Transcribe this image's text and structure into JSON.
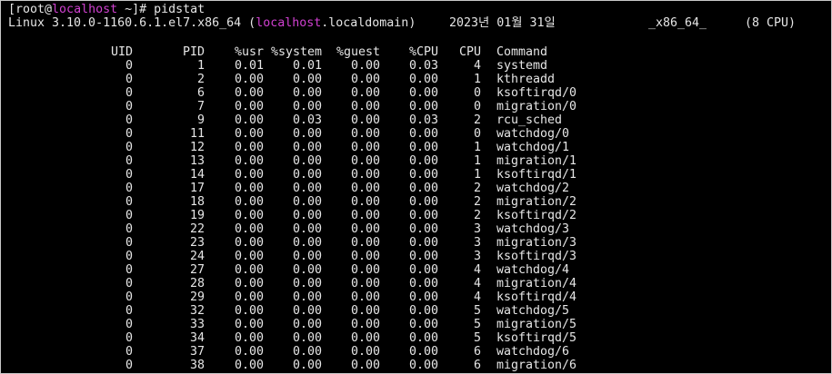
{
  "prompt": {
    "user": "[root@",
    "host": "localhost",
    "rest": " ~]# pidstat"
  },
  "system_info": {
    "kernel": "Linux 3.10.0-1160.6.1.el7.x86_64 (",
    "host": "localhost",
    "domain": ".localdomain)",
    "date": "2023년 01월 31일",
    "arch": "_x86_64_",
    "cpus": "(8 CPU)"
  },
  "table": {
    "columns": [
      "UID",
      "PID",
      "%usr",
      "%system",
      "%guest",
      "%CPU",
      "CPU",
      "Command"
    ],
    "rows": [
      [
        "0",
        "1",
        "0.01",
        "0.01",
        "0.00",
        "0.03",
        "4",
        "systemd"
      ],
      [
        "0",
        "2",
        "0.00",
        "0.00",
        "0.00",
        "0.00",
        "1",
        "kthreadd"
      ],
      [
        "0",
        "6",
        "0.00",
        "0.00",
        "0.00",
        "0.00",
        "0",
        "ksoftirqd/0"
      ],
      [
        "0",
        "7",
        "0.00",
        "0.00",
        "0.00",
        "0.00",
        "0",
        "migration/0"
      ],
      [
        "0",
        "9",
        "0.00",
        "0.03",
        "0.00",
        "0.03",
        "2",
        "rcu_sched"
      ],
      [
        "0",
        "11",
        "0.00",
        "0.00",
        "0.00",
        "0.00",
        "0",
        "watchdog/0"
      ],
      [
        "0",
        "12",
        "0.00",
        "0.00",
        "0.00",
        "0.00",
        "1",
        "watchdog/1"
      ],
      [
        "0",
        "13",
        "0.00",
        "0.00",
        "0.00",
        "0.00",
        "1",
        "migration/1"
      ],
      [
        "0",
        "14",
        "0.00",
        "0.00",
        "0.00",
        "0.00",
        "1",
        "ksoftirqd/1"
      ],
      [
        "0",
        "17",
        "0.00",
        "0.00",
        "0.00",
        "0.00",
        "2",
        "watchdog/2"
      ],
      [
        "0",
        "18",
        "0.00",
        "0.00",
        "0.00",
        "0.00",
        "2",
        "migration/2"
      ],
      [
        "0",
        "19",
        "0.00",
        "0.00",
        "0.00",
        "0.00",
        "2",
        "ksoftirqd/2"
      ],
      [
        "0",
        "22",
        "0.00",
        "0.00",
        "0.00",
        "0.00",
        "3",
        "watchdog/3"
      ],
      [
        "0",
        "23",
        "0.00",
        "0.00",
        "0.00",
        "0.00",
        "3",
        "migration/3"
      ],
      [
        "0",
        "24",
        "0.00",
        "0.00",
        "0.00",
        "0.00",
        "3",
        "ksoftirqd/3"
      ],
      [
        "0",
        "27",
        "0.00",
        "0.00",
        "0.00",
        "0.00",
        "4",
        "watchdog/4"
      ],
      [
        "0",
        "28",
        "0.00",
        "0.00",
        "0.00",
        "0.00",
        "4",
        "migration/4"
      ],
      [
        "0",
        "29",
        "0.00",
        "0.00",
        "0.00",
        "0.00",
        "4",
        "ksoftirqd/4"
      ],
      [
        "0",
        "32",
        "0.00",
        "0.00",
        "0.00",
        "0.00",
        "5",
        "watchdog/5"
      ],
      [
        "0",
        "33",
        "0.00",
        "0.00",
        "0.00",
        "0.00",
        "5",
        "migration/5"
      ],
      [
        "0",
        "34",
        "0.00",
        "0.00",
        "0.00",
        "0.00",
        "5",
        "ksoftirqd/5"
      ],
      [
        "0",
        "37",
        "0.00",
        "0.00",
        "0.00",
        "0.00",
        "6",
        "watchdog/6"
      ],
      [
        "0",
        "38",
        "0.00",
        "0.00",
        "0.00",
        "0.00",
        "6",
        "migration/6"
      ]
    ]
  }
}
